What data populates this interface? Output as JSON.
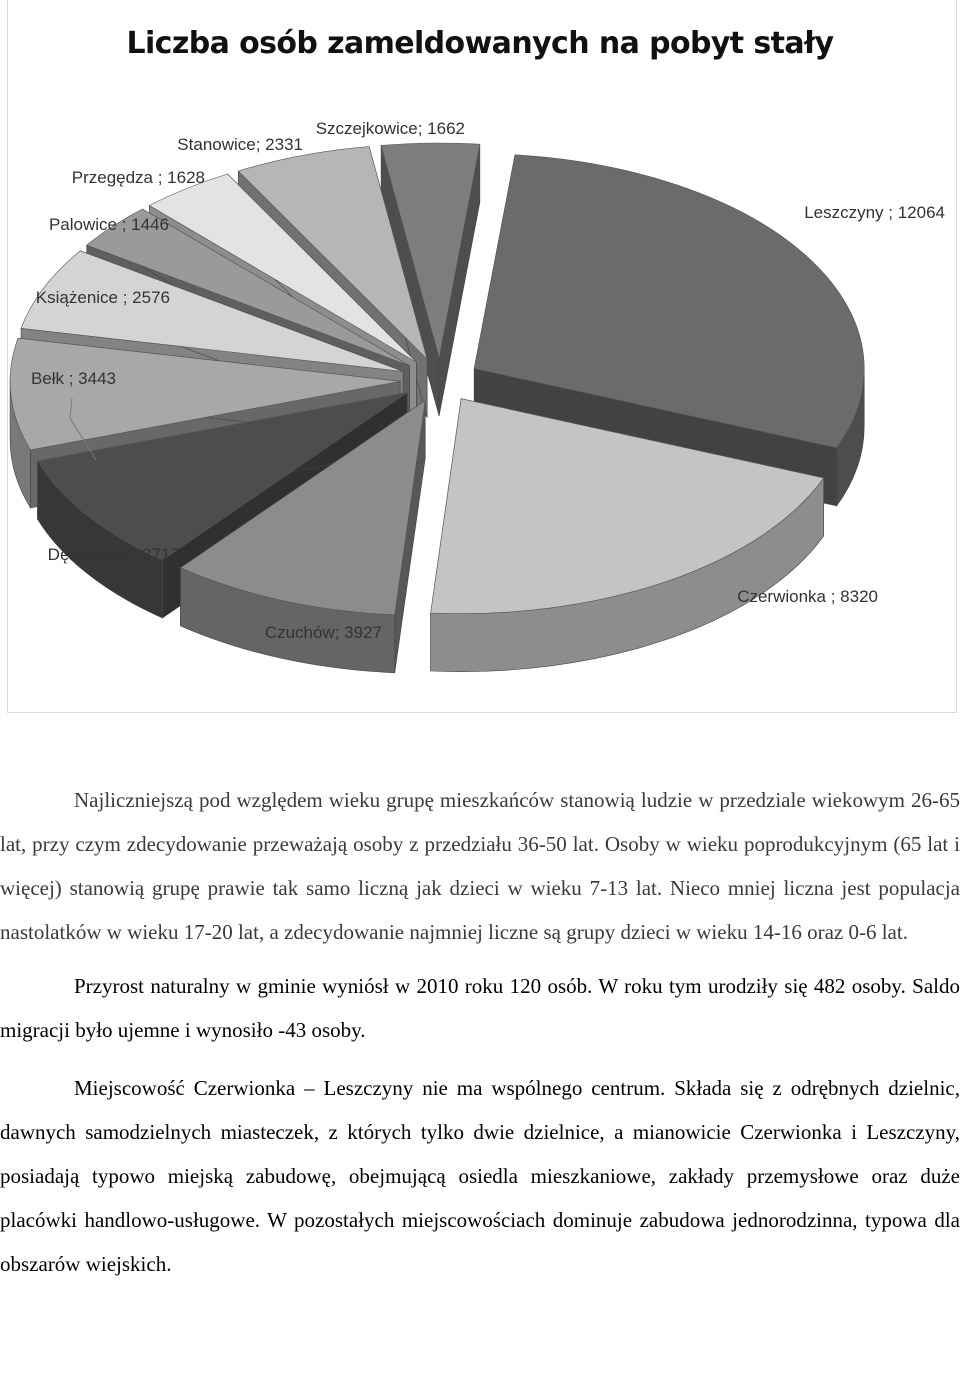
{
  "chart_data": {
    "type": "pie",
    "title": "Liczba osób zameldowanych na pobyt stały",
    "slices": [
      {
        "name": "Leszczyny",
        "value": 12064,
        "label": "Leszczyny ; 12064",
        "color": "#6b6b6b"
      },
      {
        "name": "Czerwionka",
        "value": 8320,
        "label": "Czerwionka ; 8320",
        "color": "#c4c4c4"
      },
      {
        "name": "Czuchów",
        "value": 3927,
        "label": "Czuchów; 3927",
        "color": "#8c8c8c"
      },
      {
        "name": "Dębieńsko",
        "value": 3717,
        "label": "Dębieńsko ; 3717",
        "color": "#4d4d4d"
      },
      {
        "name": "Bełk",
        "value": 3443,
        "label": "Bełk ; 3443",
        "color": "#a8a8a8"
      },
      {
        "name": "Książenice",
        "value": 2576,
        "label": "Książenice ; 2576",
        "color": "#d4d4d4"
      },
      {
        "name": "Palowice",
        "value": 1446,
        "label": "Palowice ; 1446",
        "color": "#9a9a9a"
      },
      {
        "name": "Przegędza",
        "value": 1628,
        "label": "Przegędza ; 1628",
        "color": "#e3e3e3"
      },
      {
        "name": "Stanowice",
        "value": 2331,
        "label": "Stanowice; 2331",
        "color": "#b6b6b6"
      },
      {
        "name": "Szczejkowice",
        "value": 1662,
        "label": "Szczejkowice; 1662",
        "color": "#7d7d7d"
      }
    ]
  },
  "paragraphs": [
    "Najliczniejszą pod względem wieku grupę mieszkańców stanowią ludzie w przedziale wiekowym 26-65 lat, przy czym zdecydowanie przeważają osoby z przedziału 36-50 lat. Osoby w wieku poprodukcyjnym (65 lat i więcej) stanowią grupę prawie tak samo liczną jak dzieci w wieku 7-13 lat. Nieco mniej liczna jest populacja nastolatków w wieku 17-20 lat, a zdecydowanie najmniej liczne są grupy dzieci w wieku 14-16 oraz 0-6 lat.",
    "Przyrost naturalny w gminie wyniósł w 2010 roku 120 osób. W roku tym urodziły się 482 osoby. Saldo migracji było ujemne i wynosiło -43 osoby.",
    "Miejscowość Czerwionka – Leszczyny nie ma wspólnego centrum. Składa się z odrębnych dzielnic, dawnych samodzielnych miasteczek, z których tylko dwie dzielnice, a mianowicie Czerwionka i Leszczyny, posiadają typowo miejską zabudowę, obejmującą osiedla mieszkaniowe, zakłady przemysłowe oraz duże placówki handlowo-usługowe. W pozostałych miejscowościach dominuje zabudowa jednorodzinna, typowa dla obszarów wiejskich."
  ]
}
